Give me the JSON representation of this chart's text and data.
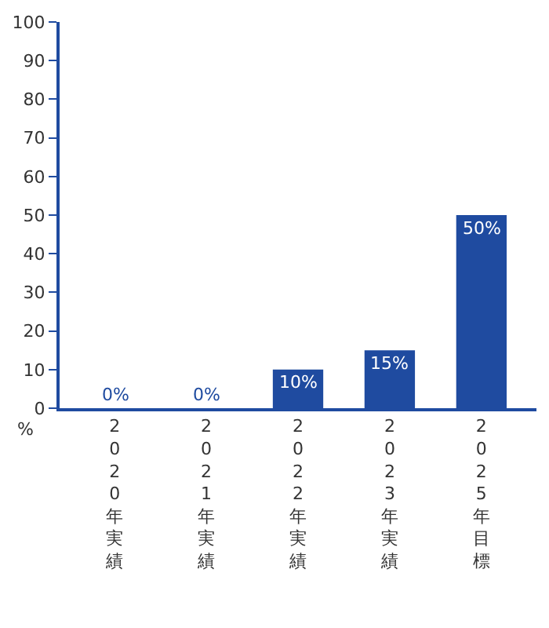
{
  "chart_data": {
    "type": "bar",
    "ylabel": "%",
    "categories": [
      "2020年実績",
      "2021年実績",
      "2022年実績",
      "2023年実績",
      "2025年目標"
    ],
    "values": [
      0,
      0,
      10,
      15,
      50
    ],
    "value_labels": [
      "0%",
      "0%",
      "10%",
      "15%",
      "50%"
    ],
    "color": "#1f4ba0",
    "ylim": [
      0,
      100
    ],
    "yticks": [
      0,
      10,
      20,
      30,
      40,
      50,
      60,
      70,
      80,
      90,
      100
    ],
    "relative": false
  }
}
